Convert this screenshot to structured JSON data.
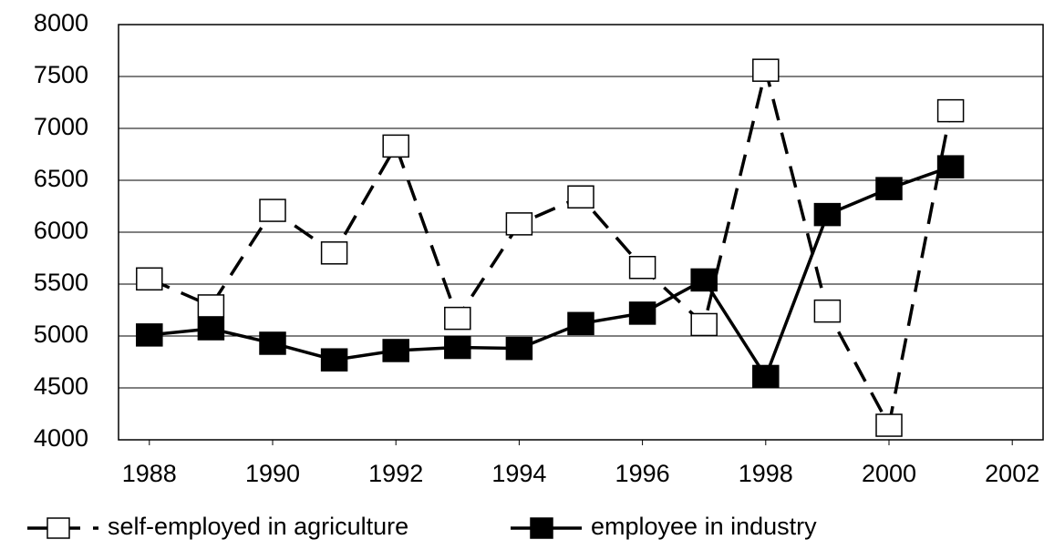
{
  "chart_data": {
    "type": "line",
    "x": [
      1988,
      1989,
      1990,
      1991,
      1992,
      1993,
      1994,
      1995,
      1996,
      1997,
      1998,
      1999,
      2000,
      2001
    ],
    "series": [
      {
        "name": "self-employed in agriculture",
        "color": "#000000",
        "dashed": true,
        "marker_fill": "#ffffff",
        "values": [
          5550,
          5290,
          6210,
          5800,
          6830,
          5170,
          6080,
          6340,
          5660,
          5110,
          7560,
          5240,
          4140,
          7170
        ]
      },
      {
        "name": "employee in industry",
        "color": "#000000",
        "dashed": false,
        "marker_fill": "#000000",
        "values": [
          5010,
          5070,
          4930,
          4770,
          4860,
          4890,
          4880,
          5120,
          5220,
          5540,
          4610,
          6170,
          6420,
          6630
        ]
      }
    ],
    "xlim": [
      1987.5,
      2002.5
    ],
    "xticks": [
      1988,
      1990,
      1992,
      1994,
      1996,
      1998,
      2000,
      2002
    ],
    "ylim": [
      4000,
      8000
    ],
    "yticks": [
      4000,
      4500,
      5000,
      5500,
      6000,
      6500,
      7000,
      7500,
      8000
    ],
    "grid": true,
    "legend": "bottom"
  }
}
